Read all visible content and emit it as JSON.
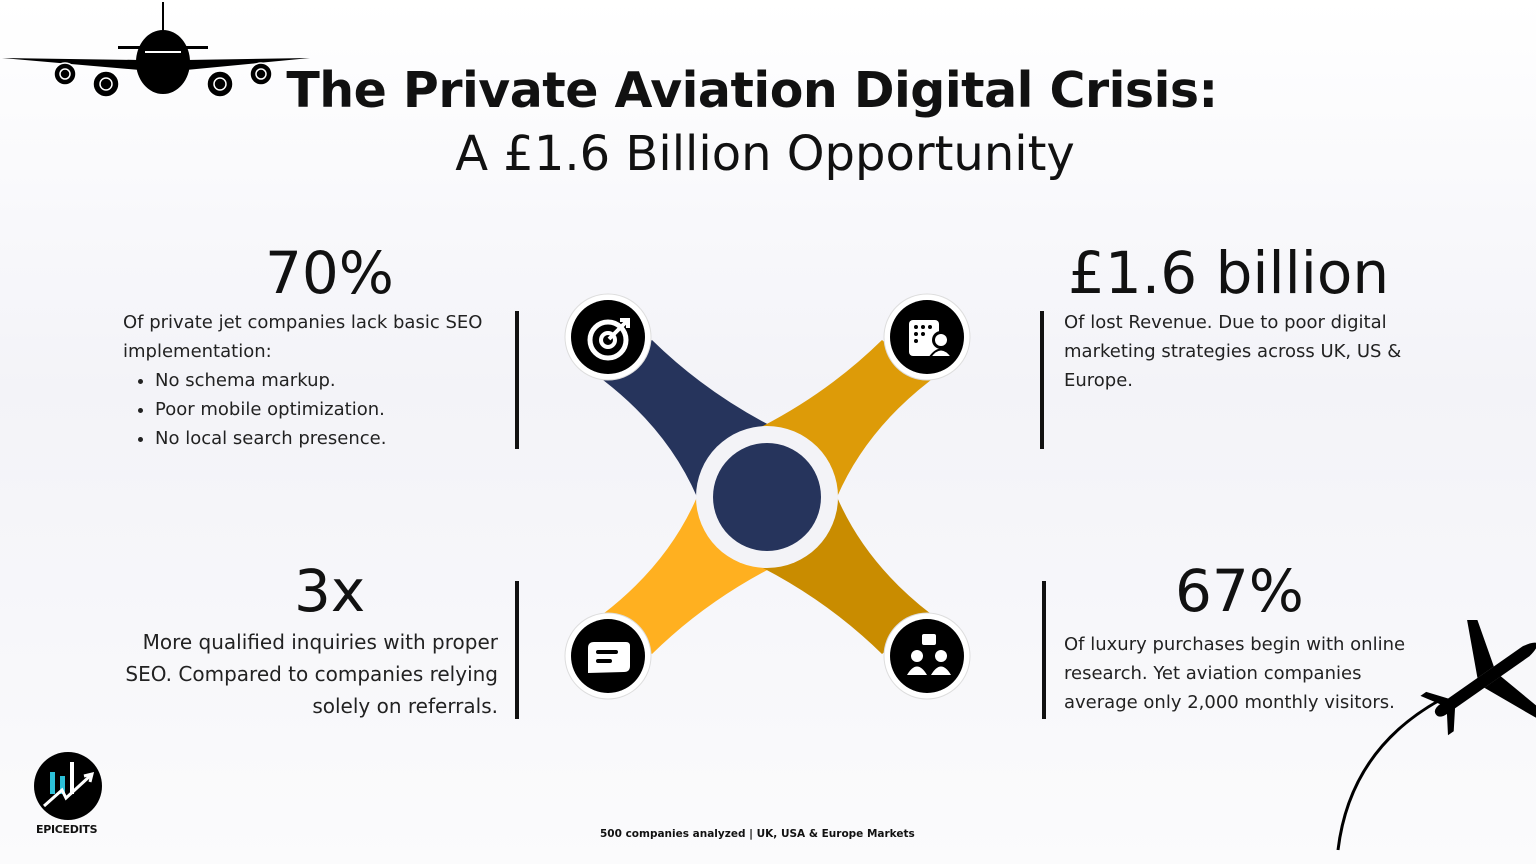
{
  "title": "The Private Aviation Digital Crisis:",
  "subtitle": "A £1.6 Billion Opportunity",
  "stats": [
    {
      "value": "70%",
      "text": "Of private jet companies lack basic SEO implementation:",
      "bullets": [
        "No schema markup.",
        "Poor mobile optimization.",
        "No local search presence."
      ],
      "icon": "target-icon"
    },
    {
      "value": "£1.6 billion",
      "text": "Of lost Revenue. Due to poor digital marketing strategies across UK, US & Europe.",
      "icon": "contact-directory-icon"
    },
    {
      "value": "3x",
      "text": "More qualified inquiries with proper SEO. Compared to companies relying solely on referrals.",
      "icon": "chat-message-icon"
    },
    {
      "value": "67%",
      "text": "Of luxury purchases begin with online research. Yet aviation companies average only 2,000 monthly visitors.",
      "icon": "team-hierarchy-icon"
    }
  ],
  "footer": "500 companies analyzed | UK, USA & Europe Markets",
  "brand": "EPICEDITS",
  "colors": {
    "navy": "#26345c",
    "gold": "#dd9b08",
    "amber": "#ffb020",
    "ochre": "#c98c00"
  }
}
